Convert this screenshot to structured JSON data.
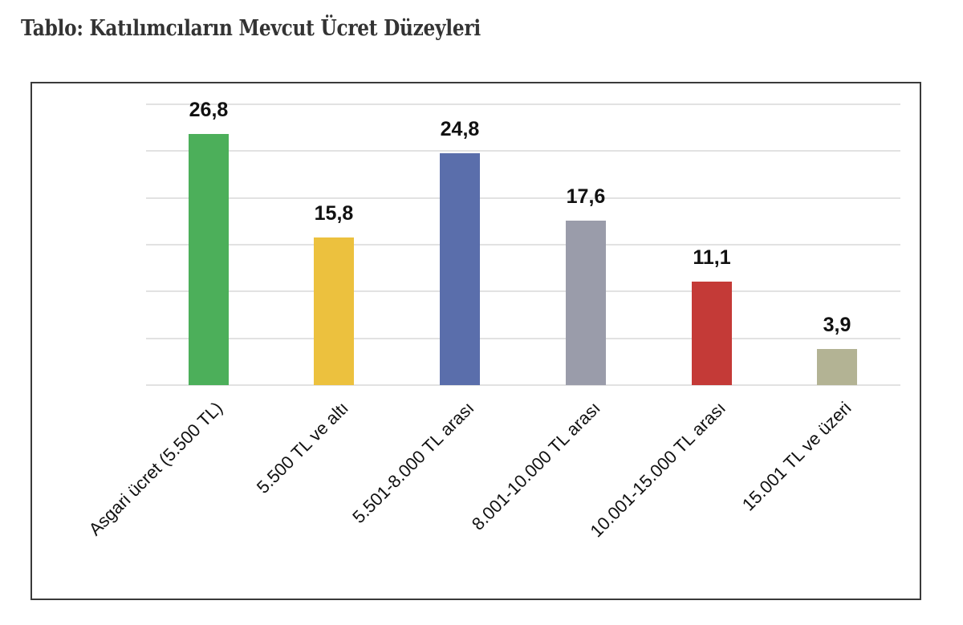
{
  "page": {
    "title": "Tablo: Katılımcıların Mevcut Ücret Düzeyleri"
  },
  "chart_data": {
    "type": "bar",
    "title": "Tablo: Katılımcıların Mevcut Ücret Düzeyleri",
    "xlabel": "",
    "ylabel": "",
    "ylim": [
      0,
      30
    ],
    "grid": true,
    "gridline_step": 5,
    "y_tick_labels_visible": false,
    "legend": "none",
    "categories": [
      "Asgari ücret (5.500 TL)",
      "5.500 TL ve altı",
      "5.501-8.000 TL arası",
      "8.001-10.000 TL arası",
      "10.001-15.000 TL arası",
      "15.001 TL ve üzeri"
    ],
    "values": [
      26.8,
      15.8,
      24.8,
      17.6,
      11.1,
      3.9
    ],
    "value_labels": [
      "26,8",
      "15,8",
      "24,8",
      "17,6",
      "11,1",
      "3,9"
    ],
    "colors": [
      "#4caf5a",
      "#ecc13e",
      "#5a6eab",
      "#9a9caa",
      "#c43a37",
      "#b3b394"
    ]
  }
}
